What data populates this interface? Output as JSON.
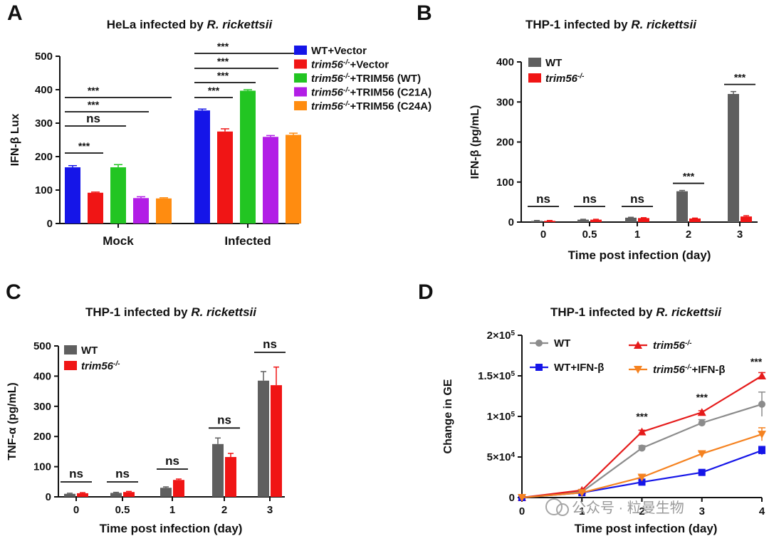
{
  "watermark": "公众号 · 粒曼生物",
  "chart_data": [
    {
      "panel": "A",
      "type": "bar",
      "title_prefix": "HeLa infected by ",
      "title_italic": "R. rickettsii",
      "ylabel": "IFN-β Lux",
      "xlabel": "",
      "ylim": [
        0,
        500
      ],
      "yticks": [
        0,
        100,
        200,
        300,
        400,
        500
      ],
      "categories": [
        "Mock",
        "Infected"
      ],
      "series": [
        {
          "legend_italic": "",
          "legend_sup": "",
          "legend_rest": "WT+Vector",
          "color": "#1515e8",
          "values": [
            168,
            338
          ],
          "errors": [
            5,
            4
          ]
        },
        {
          "legend_italic": "trim56",
          "legend_sup": "-/-",
          "legend_rest": "+Vector",
          "color": "#f01515",
          "values": [
            92,
            275
          ],
          "errors": [
            2,
            8
          ]
        },
        {
          "legend_italic": "trim56",
          "legend_sup": "-/-",
          "legend_rest": "+TRIM56 (WT)",
          "color": "#22c522",
          "values": [
            168,
            397
          ],
          "errors": [
            8,
            3
          ]
        },
        {
          "legend_italic": "trim56",
          "legend_sup": "-/-",
          "legend_rest": "+TRIM56 (C21A)",
          "color": "#b21ee6",
          "values": [
            76,
            259
          ],
          "errors": [
            4,
            4
          ]
        },
        {
          "legend_italic": "trim56",
          "legend_sup": "-/-",
          "legend_rest": "+TRIM56 (C24A)",
          "color": "#ff8c10",
          "values": [
            75,
            265
          ],
          "errors": [
            2,
            5
          ]
        }
      ],
      "significance": [
        {
          "group": 0,
          "from": 0,
          "to": 1,
          "label": "***",
          "level": 1
        },
        {
          "group": 0,
          "from": 0,
          "to": 2,
          "label": "ns",
          "level": 2
        },
        {
          "group": 0,
          "from": 0,
          "to": 3,
          "label": "***",
          "level": 3
        },
        {
          "group": 0,
          "from": 0,
          "to": 4,
          "label": "***",
          "level": 4
        },
        {
          "group": 1,
          "from": 0,
          "to": 1,
          "label": "***",
          "level": 1
        },
        {
          "group": 1,
          "from": 0,
          "to": 2,
          "label": "***",
          "level": 2
        },
        {
          "group": 1,
          "from": 0,
          "to": 3,
          "label": "***",
          "level": 3
        },
        {
          "group": 1,
          "from": 0,
          "to": 4,
          "label": "***",
          "level": 4
        }
      ]
    },
    {
      "panel": "B",
      "type": "bar",
      "title_prefix": "THP-1 infected by ",
      "title_italic": "R. rickettsii",
      "ylabel": "IFN-β (pg/mL)",
      "xlabel": "Time post infection (day)",
      "ylim": [
        0,
        400
      ],
      "yticks": [
        0,
        100,
        200,
        300,
        400
      ],
      "categories": [
        "0",
        "0.5",
        "1",
        "2",
        "3"
      ],
      "series": [
        {
          "legend_italic": "",
          "legend_sup": "",
          "legend_rest": "WT",
          "color": "#5f5f5f",
          "values": [
            3,
            6,
            11,
            77,
            320
          ],
          "errors": [
            1,
            1,
            1,
            2,
            6
          ]
        },
        {
          "legend_italic": "trim56",
          "legend_sup": "-/-",
          "legend_rest": "",
          "color": "#f01515",
          "values": [
            3,
            6,
            10,
            9,
            14
          ],
          "errors": [
            1,
            1,
            1,
            1,
            2
          ]
        }
      ],
      "significance": [
        "ns",
        "ns",
        "ns",
        "***",
        "***"
      ]
    },
    {
      "panel": "C",
      "type": "bar",
      "title_prefix": "THP-1 infected by ",
      "title_italic": "R. rickettsii",
      "ylabel": "TNF-α (pg/mL)",
      "xlabel": "Time post infection (day)",
      "ylim": [
        0,
        500
      ],
      "yticks": [
        0,
        100,
        200,
        300,
        400,
        500
      ],
      "categories": [
        "0",
        "0.5",
        "1",
        "2",
        "3"
      ],
      "series": [
        {
          "legend_italic": "",
          "legend_sup": "",
          "legend_rest": "WT",
          "color": "#5f5f5f",
          "values": [
            10,
            13,
            30,
            175,
            385
          ],
          "errors": [
            2,
            2,
            3,
            20,
            30
          ]
        },
        {
          "legend_italic": "trim56",
          "legend_sup": "-/-",
          "legend_rest": "",
          "color": "#f01515",
          "values": [
            12,
            16,
            56,
            132,
            370
          ],
          "errors": [
            2,
            2,
            3,
            12,
            60
          ]
        }
      ],
      "significance": [
        "ns",
        "ns",
        "ns",
        "ns",
        "ns"
      ]
    },
    {
      "panel": "D",
      "type": "line",
      "title_prefix": "THP-1 infected by ",
      "title_italic": "R. rickettsii",
      "ylabel": "Change in GE",
      "xlabel": "Time post infection (day)",
      "xlim": [
        0,
        4
      ],
      "xticks": [
        "0",
        "1",
        "2",
        "3",
        "4"
      ],
      "ylim": [
        0,
        200000
      ],
      "ytick_labels": [
        {
          "value": 0,
          "base": "0",
          "exp": ""
        },
        {
          "value": 50000,
          "base": "5×10",
          "exp": "4"
        },
        {
          "value": 100000,
          "base": "1×10",
          "exp": "5"
        },
        {
          "value": 150000,
          "base": "1.5×10",
          "exp": "5"
        },
        {
          "value": 200000,
          "base": "2×10",
          "exp": "5"
        }
      ],
      "x": [
        0,
        1,
        2,
        3,
        4
      ],
      "series": [
        {
          "legend_italic": "",
          "legend_sup": "",
          "legend_rest": "WT",
          "color": "#8c8c8c",
          "marker": "circle",
          "values": [
            0,
            7000,
            61000,
            92000,
            115000
          ],
          "errors": [
            0,
            1000,
            3000,
            4000,
            15000
          ]
        },
        {
          "legend_italic": "trim56",
          "legend_sup": "-/-",
          "legend_rest": "",
          "color": "#e51b1b",
          "marker": "triangle-up",
          "values": [
            0,
            9000,
            81000,
            105000,
            150000
          ],
          "errors": [
            0,
            1000,
            2000,
            2000,
            4000
          ]
        },
        {
          "legend_italic": "",
          "legend_sup": "",
          "legend_rest": "WT+IFN-β",
          "color": "#1515e8",
          "marker": "square",
          "values": [
            0,
            6000,
            19000,
            31000,
            58000
          ],
          "errors": [
            0,
            1000,
            2000,
            2000,
            5000
          ]
        },
        {
          "legend_italic": "trim56",
          "legend_sup": "-/-",
          "legend_rest": "+IFN-β",
          "color": "#f58220",
          "marker": "triangle-down",
          "values": [
            0,
            6000,
            25000,
            54000,
            78000
          ],
          "errors": [
            0,
            1000,
            2000,
            2000,
            8000
          ]
        }
      ],
      "significance": [
        {
          "x": 2,
          "label": "***"
        },
        {
          "x": 3,
          "label": "***"
        },
        {
          "x": 4,
          "label": "***"
        }
      ]
    }
  ]
}
